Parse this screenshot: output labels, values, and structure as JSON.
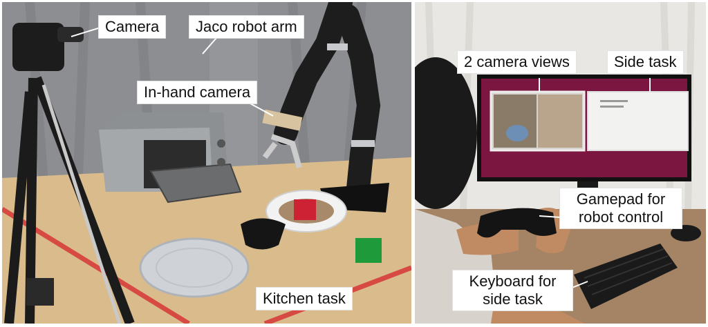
{
  "figure": {
    "left_panel": {
      "labels": {
        "camera": "Camera",
        "jaco_arm": "Jaco robot arm",
        "in_hand_camera": "In-hand camera",
        "kitchen_task": "Kitchen task"
      },
      "colors": {
        "wall": "#8d8e92",
        "table": "#d9bb8c",
        "tape": "#d64a43",
        "oven": "#8d9093",
        "plate": "#cfd3d8",
        "cube_red": "#cc2233",
        "cube_green": "#1f9a3a"
      }
    },
    "right_panel": {
      "labels": {
        "camera_views": "2 camera views",
        "side_task": "Side task",
        "gamepad_line1": "Gamepad for",
        "gamepad_line2": "robot control",
        "keyboard_line1": "Keyboard for",
        "keyboard_line2": "side task"
      },
      "colors": {
        "screen": "#7a1640",
        "curtain": "#e9e7e3",
        "desk": "#a58466"
      }
    }
  }
}
